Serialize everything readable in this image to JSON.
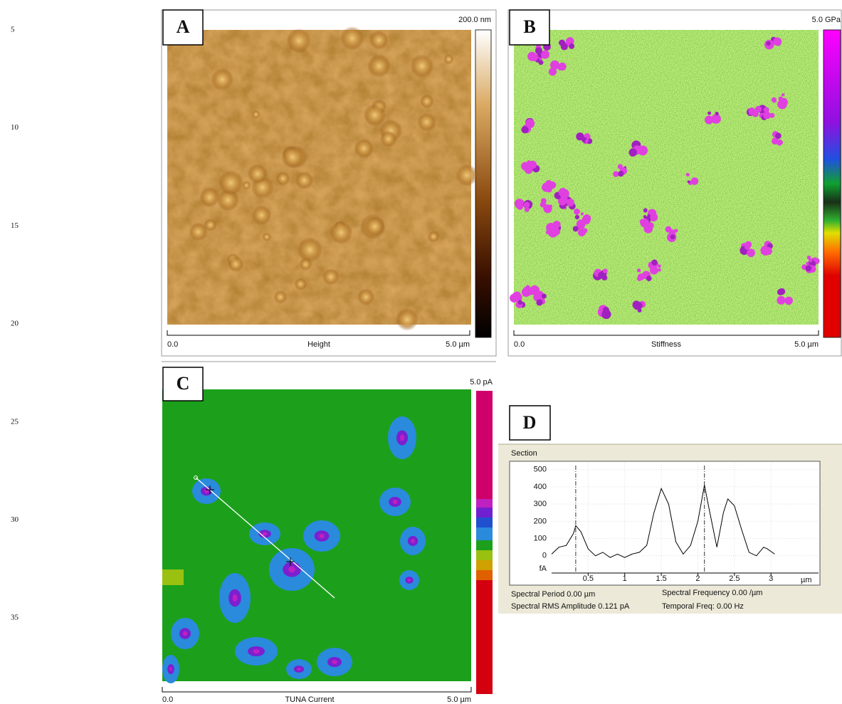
{
  "line_numbers": [
    "5",
    "10",
    "15",
    "20",
    "25",
    "30",
    "35"
  ],
  "panels": [
    {
      "letter": "A",
      "scale_max": "200.0 nm",
      "axis_start": "0.0",
      "axis_label": "Height",
      "axis_end": "5.0 µm"
    },
    {
      "letter": "B",
      "scale_max": "5.0 GPa",
      "axis_start": "0.0",
      "axis_label": "Stiffness",
      "axis_end": "5.0 µm"
    },
    {
      "letter": "C",
      "scale_max": "5.0 pA",
      "axis_start": "0.0",
      "axis_label": "TUNA Current",
      "axis_end": "5.0 µm"
    }
  ],
  "section": {
    "letter": "D",
    "title": "Section",
    "stats": [
      "Spectral Period 0.00 µm",
      "Spectral RMS Amplitude 0.121 pA",
      "Spectral Frequency 0.00 /µm",
      "Temporal Freq: 0.00 Hz"
    ]
  },
  "chart_data": {
    "type": "line",
    "y_unit": "fA",
    "x_unit": "µm",
    "x": [
      0,
      0.1,
      0.2,
      0.3,
      0.33,
      0.4,
      0.5,
      0.6,
      0.7,
      0.8,
      0.9,
      1,
      1.1,
      1.2,
      1.3,
      1.4,
      1.5,
      1.6,
      1.7,
      1.8,
      1.9,
      2,
      2.09,
      2.15,
      2.26,
      2.35,
      2.41,
      2.5,
      2.6,
      2.7,
      2.8,
      2.9,
      2.95,
      3.05
    ],
    "values": [
      10,
      50,
      60,
      130,
      175,
      140,
      40,
      0,
      20,
      -10,
      10,
      -10,
      10,
      20,
      60,
      250,
      390,
      300,
      80,
      10,
      60,
      200,
      410,
      280,
      50,
      250,
      330,
      290,
      150,
      20,
      0,
      50,
      40,
      10
    ],
    "color": "#000000",
    "xlim": [
      0,
      3.65
    ],
    "ylim": [
      -100,
      540
    ],
    "xticks": [
      0.5,
      1,
      1.5,
      2,
      2.5,
      3
    ],
    "yticks": [
      0,
      100,
      200,
      300,
      400,
      500
    ],
    "grid": true,
    "cursor_x": [
      0.33,
      2.09
    ]
  }
}
